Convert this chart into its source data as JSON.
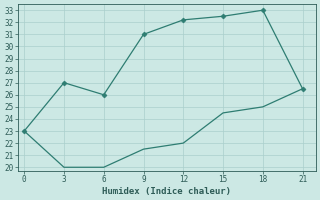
{
  "title": "",
  "xlabel": "Humidex (Indice chaleur)",
  "x_upper": [
    0,
    3,
    6,
    9,
    12,
    15,
    18,
    21
  ],
  "y_upper": [
    23,
    27,
    26,
    31,
    32.2,
    32.5,
    33,
    26.5
  ],
  "x_lower": [
    0,
    3,
    6,
    9,
    12,
    15,
    18,
    21
  ],
  "y_lower": [
    23,
    20,
    20,
    21.5,
    22,
    24.5,
    25,
    26.5
  ],
  "line_color": "#2e7d72",
  "marker_color": "#2e7d72",
  "bg_color": "#cce8e4",
  "grid_color": "#aacfcc",
  "text_color": "#2e5c57",
  "ylim": [
    19.7,
    33.5
  ],
  "xlim": [
    -0.5,
    22
  ],
  "yticks": [
    20,
    21,
    22,
    23,
    24,
    25,
    26,
    27,
    28,
    29,
    30,
    31,
    32,
    33
  ],
  "xticks": [
    0,
    3,
    6,
    9,
    12,
    15,
    18,
    21
  ],
  "axis_fontsize": 6.5,
  "tick_fontsize": 5.5,
  "linewidth": 0.9,
  "markersize": 2.5
}
